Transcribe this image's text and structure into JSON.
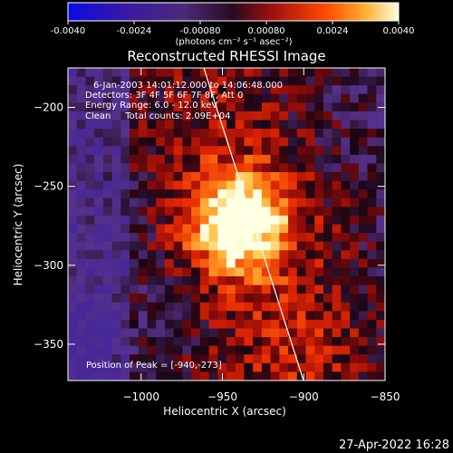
{
  "colorbar": {
    "ticks": [
      "-0.0040",
      "-0.0024",
      "-0.00080",
      "0.00080",
      "0.0024",
      "0.0040"
    ],
    "tick_values": [
      -0.004,
      -0.0024,
      -0.0008,
      0.0008,
      0.0024,
      0.004
    ],
    "range": [
      -0.004,
      0.004
    ],
    "unit_label": "(photons cm⁻² s⁻¹ asec⁻²)"
  },
  "title": "Reconstructed RHESSI Image",
  "info": {
    "time": "6-Jan-2003 14:01:12.000 to 14:06:48.000",
    "detectors": "Detectors: 3F 4F 5F 6F 7F 8F, Att 0",
    "energy": "Energy Range: 6.0 - 12.0 keV",
    "clean": "Clean     Total counts: 2.09E+04"
  },
  "peak_label": "Position of Peak = [-940,-273]",
  "peak": {
    "x": -940,
    "y": -273
  },
  "x_axis": {
    "label": "Heliocentric X (arcsec)",
    "range": [
      -1045,
      -850
    ],
    "ticks": [
      {
        "value": -1000,
        "label": "−1000"
      },
      {
        "value": -950,
        "label": "−950"
      },
      {
        "value": -900,
        "label": "−900"
      },
      {
        "value": -850,
        "label": "−850"
      }
    ]
  },
  "y_axis": {
    "label": "Heliocentric Y (arcsec)",
    "range": [
      -373,
      -175
    ],
    "ticks": [
      {
        "value": -200,
        "label": "−200"
      },
      {
        "value": -250,
        "label": "−250"
      },
      {
        "value": -300,
        "label": "−300"
      },
      {
        "value": -350,
        "label": "−350"
      }
    ]
  },
  "timestamp": "27-Apr-2022 16:28",
  "colors": {
    "limb_line": "#ffffff",
    "peak": "#ffffaa",
    "background": "#000000"
  }
}
